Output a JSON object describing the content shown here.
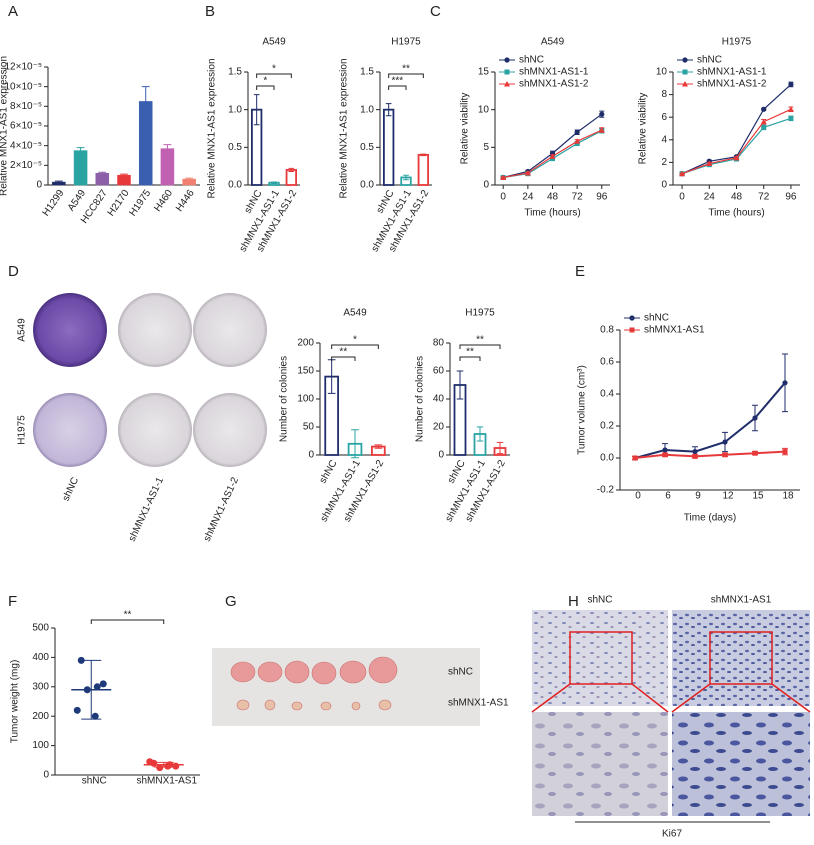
{
  "panel_labels": [
    "A",
    "B",
    "C",
    "D",
    "E",
    "F",
    "G",
    "H"
  ],
  "chart_data": [
    {
      "type": "bar",
      "y_label": "Relative MNX1-AS1 expression",
      "categories": [
        "H1299",
        "A549",
        "HCC827",
        "H2170",
        "H1975",
        "H460",
        "H446"
      ],
      "values": [
        3e-06,
        3.5e-05,
        1.2e-05,
        1e-05,
        8.5e-05,
        3.7e-05,
        6e-06
      ],
      "errors": [
        1e-06,
        3e-06,
        1e-06,
        1e-06,
        1.5e-05,
        4e-06,
        1e-06
      ],
      "colors": [
        "#1f2d6b",
        "#2aa3a3",
        "#8c5fa8",
        "#e8393a",
        "#3a5fb0",
        "#c060b0",
        "#f08070"
      ],
      "bar_style": "filled",
      "ylim": [
        0,
        0.00012
      ],
      "yticks": [
        0,
        {
          "value": 2e-05,
          "label": "2×10⁻⁵"
        },
        {
          "value": 4e-05,
          "label": "4×10⁻⁵"
        },
        {
          "value": 6e-05,
          "label": "6×10⁻⁵"
        },
        {
          "value": 8e-05,
          "label": "8×10⁻⁵"
        },
        {
          "value": 0.0001,
          "label": "10×10⁻⁵"
        },
        {
          "value": 0.00012,
          "label": "12×10⁻⁵"
        }
      ]
    },
    {
      "type": "bar",
      "title": "A549",
      "y_label": "Relative MNX1-AS1 expression",
      "categories": [
        "shNC",
        "shMNX1-AS1-1",
        "shMNX1-AS1-2"
      ],
      "values": [
        1.0,
        0.03,
        0.2
      ],
      "errors": [
        0.2,
        0.01,
        0.02
      ],
      "colors": [
        "#1f2d6b",
        "#2aa3a3",
        "#e8393a"
      ],
      "bar_style": "outline",
      "ylim": [
        0,
        1.5
      ],
      "yticks": [
        {
          "value": 0,
          "label": "0.0"
        },
        0.5,
        {
          "value": 1,
          "label": "1.0"
        },
        1.5
      ],
      "significance": [
        {
          "text": "*",
          "between": [
            0,
            1
          ]
        },
        {
          "text": "*",
          "between": [
            0,
            2
          ]
        }
      ]
    },
    {
      "type": "bar",
      "title": "H1975",
      "y_label": "Relative MNX1-AS1 expression",
      "categories": [
        "shNC",
        "shMNX1-AS1-1",
        "shMNX1-AS1-2"
      ],
      "values": [
        1.0,
        0.1,
        0.4
      ],
      "errors": [
        0.08,
        0.03,
        0.01
      ],
      "colors": [
        "#1f2d6b",
        "#2aa3a3",
        "#e8393a"
      ],
      "bar_style": "outline",
      "ylim": [
        0,
        1.5
      ],
      "yticks": [
        {
          "value": 0,
          "label": "0.0"
        },
        0.5,
        {
          "value": 1,
          "label": "1.0"
        },
        1.5
      ],
      "significance": [
        {
          "text": "***",
          "between": [
            0,
            1
          ]
        },
        {
          "text": "**",
          "between": [
            0,
            2
          ]
        }
      ]
    },
    {
      "type": "line",
      "title": "A549",
      "x_label": "Time (hours)",
      "y_label": "Relative viability",
      "x": [
        0,
        24,
        48,
        72,
        96
      ],
      "xlim": [
        -8,
        104
      ],
      "xticks": [
        0,
        24,
        48,
        72,
        96
      ],
      "ylim": [
        0,
        15
      ],
      "yticks": [
        0,
        5,
        10,
        15
      ],
      "legend": "upper left",
      "series": [
        {
          "name": "shNC",
          "color": "#1f2d6b",
          "marker": "circle",
          "values": [
            1,
            1.8,
            4.2,
            7,
            9.4
          ],
          "errors": [
            0.1,
            0.15,
            0.3,
            0.3,
            0.4
          ]
        },
        {
          "name": "shMNX1-AS1-1",
          "color": "#2aa3a3",
          "marker": "square",
          "values": [
            1,
            1.5,
            3.5,
            5.5,
            7.2
          ],
          "errors": [
            0.1,
            0.1,
            0.2,
            0.2,
            0.3
          ]
        },
        {
          "name": "shMNX1-AS1-2",
          "color": "#e8393a",
          "marker": "triangle",
          "values": [
            1,
            1.6,
            3.8,
            5.8,
            7.3
          ],
          "errors": [
            0.1,
            0.1,
            0.2,
            0.2,
            0.3
          ]
        }
      ]
    },
    {
      "type": "line",
      "title": "H1975",
      "x_label": "Time (hours)",
      "y_label": "Relative viability",
      "x": [
        0,
        24,
        48,
        72,
        96
      ],
      "xlim": [
        -8,
        104
      ],
      "xticks": [
        0,
        24,
        48,
        72,
        96
      ],
      "ylim": [
        0,
        10
      ],
      "yticks": [
        0,
        2,
        4,
        6,
        8,
        10
      ],
      "legend": "upper left",
      "series": [
        {
          "name": "shNC",
          "color": "#1f2d6b",
          "marker": "circle",
          "values": [
            1,
            2.1,
            2.5,
            6.7,
            8.9
          ],
          "errors": [
            0.05,
            0.1,
            0.1,
            0.1,
            0.2
          ]
        },
        {
          "name": "shMNX1-AS1-1",
          "color": "#2aa3a3",
          "marker": "square",
          "values": [
            1,
            1.8,
            2.3,
            5.1,
            5.9
          ],
          "errors": [
            0.05,
            0.1,
            0.1,
            0.2,
            0.2
          ]
        },
        {
          "name": "shMNX1-AS1-2",
          "color": "#e8393a",
          "marker": "triangle",
          "values": [
            1,
            1.9,
            2.4,
            5.6,
            6.7
          ],
          "errors": [
            0.05,
            0.1,
            0.1,
            0.2,
            0.2
          ]
        }
      ]
    },
    {
      "type": "bar",
      "title": "A549",
      "y_label": "Number of colonies",
      "categories": [
        "shNC",
        "shMNX1-AS1-1",
        "shMNX1-AS1-2"
      ],
      "values": [
        140,
        20,
        15
      ],
      "errors": [
        30,
        25,
        3
      ],
      "colors": [
        "#1f2d6b",
        "#2aa3a3",
        "#e8393a"
      ],
      "bar_style": "outline",
      "ylim": [
        0,
        200
      ],
      "yticks": [
        0,
        50,
        100,
        150,
        200
      ],
      "significance": [
        {
          "text": "**",
          "between": [
            0,
            1
          ]
        },
        {
          "text": "*",
          "between": [
            0,
            2
          ]
        }
      ]
    },
    {
      "type": "bar",
      "title": "H1975",
      "y_label": "Number of colonies",
      "categories": [
        "shNC",
        "shMNX1-AS1-1",
        "shMNX1-AS1-2"
      ],
      "values": [
        50,
        15,
        5
      ],
      "errors": [
        10,
        5,
        4
      ],
      "colors": [
        "#1f2d6b",
        "#2aa3a3",
        "#e8393a"
      ],
      "bar_style": "outline",
      "ylim": [
        0,
        80
      ],
      "yticks": [
        0,
        20,
        40,
        60,
        80
      ],
      "significance": [
        {
          "text": "**",
          "between": [
            0,
            1
          ]
        },
        {
          "text": "**",
          "between": [
            0,
            2
          ]
        }
      ]
    },
    {
      "type": "category_line",
      "x_label": "Time (days)",
      "y_label": "Tumor volume (cm³)",
      "categories": [
        "0",
        "6",
        "9",
        "12",
        "15",
        "18"
      ],
      "ylim": [
        -0.2,
        0.8
      ],
      "yticks": [
        -0.2,
        {
          "value": 0,
          "label": "0.0"
        },
        0.2,
        0.4,
        0.6,
        0.8
      ],
      "legend": "upper left",
      "series": [
        {
          "name": "shNC",
          "color": "#1f2d6b",
          "marker": "circle",
          "values": [
            0,
            0.05,
            0.04,
            0.1,
            0.25,
            0.47
          ],
          "errors": [
            0.01,
            0.04,
            0.03,
            0.06,
            0.08,
            0.18
          ]
        },
        {
          "name": "shMNX1-AS1",
          "color": "#e8393a",
          "marker": "square",
          "values": [
            0,
            0.02,
            0.01,
            0.02,
            0.03,
            0.04
          ],
          "errors": [
            0.01,
            0.01,
            0.01,
            0.01,
            0.01,
            0.02
          ]
        }
      ]
    },
    {
      "type": "dot",
      "y_label": "Tumor weight (mg)",
      "categories": [
        "shNC",
        "shMNX1-AS1"
      ],
      "points": [
        [
          390,
          300,
          310,
          290,
          220,
          200
        ],
        [
          40,
          35,
          30,
          25,
          45,
          30
        ]
      ],
      "means": [
        290,
        35
      ],
      "errors": [
        100,
        8
      ],
      "colors": [
        "#1f3a7a",
        "#e8393a"
      ],
      "ylim": [
        0,
        500
      ],
      "yticks": [
        0,
        100,
        200,
        300,
        400,
        500
      ],
      "significance": [
        {
          "text": "**",
          "between": [
            0,
            1
          ]
        }
      ]
    }
  ],
  "photos": {
    "D": {
      "rows": [
        "A549",
        "H1975"
      ],
      "columns": [
        "shNC",
        "shMNX1-AS1-1",
        "shMNX1-AS1-2"
      ]
    },
    "G": {
      "labels": [
        "shNC",
        "shMNX1-AS1"
      ]
    },
    "H": {
      "columns": [
        "shNC",
        "shMNX1-AS1"
      ],
      "caption": "Ki67"
    }
  }
}
